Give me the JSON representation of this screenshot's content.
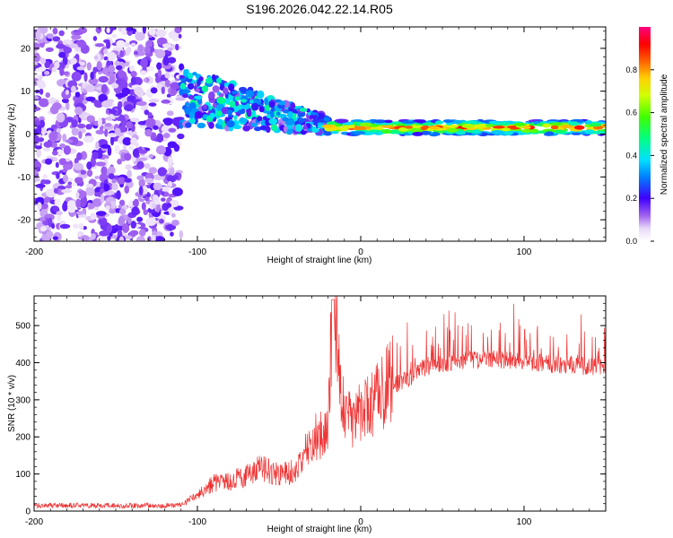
{
  "title": "S196.2026.042.22.14.R05",
  "chart_data": [
    {
      "type": "heatmap",
      "name": "spectrogram",
      "xlabel": "Height of straight line (km)",
      "ylabel": "Frequency (Hz)",
      "xlim": [
        -200,
        150
      ],
      "ylim": [
        -25,
        25
      ],
      "xticks": [
        -200,
        -100,
        0,
        100
      ],
      "xtick_labels": [
        "-200",
        "-100",
        "0",
        "100"
      ],
      "yticks": [
        -20,
        -10,
        0,
        10,
        20
      ],
      "ytick_labels": [
        "-20",
        "-10",
        "0",
        "10",
        "20"
      ],
      "colorbar": {
        "label": "Normalized spectral amplitude",
        "range": [
          0,
          1
        ],
        "ticks": [
          0,
          0.2,
          0.4,
          0.6,
          0.8
        ],
        "tick_labels": [
          "0.0",
          "0.2",
          "0.4",
          "0.6",
          "0.8"
        ],
        "colormap": "rainbow (violet to magenta)"
      },
      "regions": [
        {
          "x_range": [
            -200,
            -110
          ],
          "freq_range": [
            -25,
            25
          ],
          "description": "broadband noise",
          "amplitude": 0.1
        },
        {
          "x_range": [
            -110,
            -20
          ],
          "freq_range": [
            -5,
            15
          ],
          "description": "scattered energy converging toward ~2 Hz",
          "amplitude": 0.25
        },
        {
          "x_range": [
            -20,
            150
          ],
          "freq_center": 1.5,
          "description": "narrow band at ~1.5 Hz",
          "amplitude": 0.85
        }
      ]
    },
    {
      "type": "line",
      "name": "snr",
      "xlabel": "Height of straight line (km)",
      "ylabel": "SNR (10 * v/v)",
      "xlim": [
        -200,
        150
      ],
      "ylim": [
        0,
        580
      ],
      "xticks": [
        -200,
        -100,
        0,
        100
      ],
      "xtick_labels": [
        "-200",
        "-100",
        "0",
        "100"
      ],
      "yticks": [
        0,
        100,
        200,
        300,
        400,
        500
      ],
      "ytick_labels": [
        "0",
        "100",
        "200",
        "300",
        "400",
        "500"
      ],
      "series": [
        {
          "name": "SNR",
          "color": "#ee3333",
          "x": [
            -200,
            -150,
            -110,
            -100,
            -90,
            -80,
            -70,
            -60,
            -50,
            -40,
            -30,
            -20,
            -17,
            -10,
            0,
            10,
            20,
            30,
            40,
            60,
            80,
            100,
            120,
            140,
            150
          ],
          "y": [
            15,
            15,
            15,
            40,
            70,
            75,
            90,
            110,
            90,
            100,
            180,
            200,
            570,
            220,
            250,
            280,
            340,
            360,
            390,
            405,
            410,
            405,
            395,
            390,
            395
          ]
        }
      ]
    }
  ]
}
